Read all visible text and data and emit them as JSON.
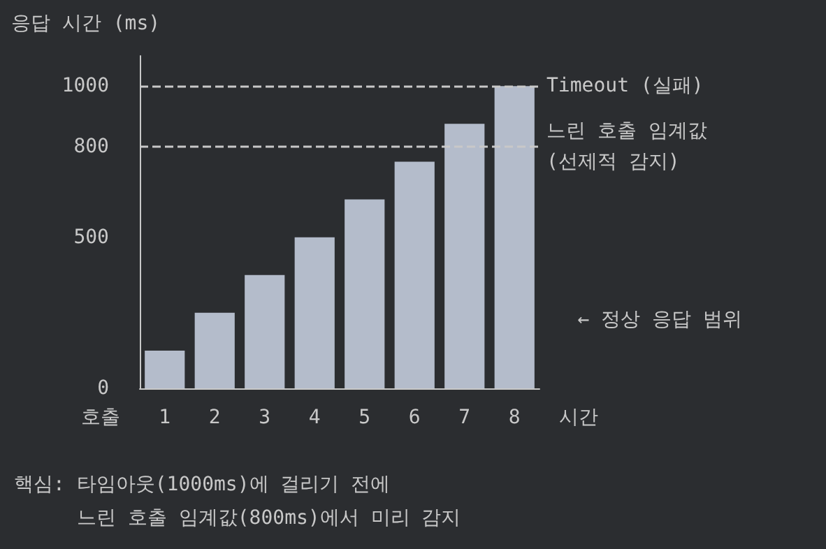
{
  "chart_data": {
    "type": "bar",
    "ylabel": "응답 시간 (ms)",
    "xlabel": "시간",
    "categories": [
      "1",
      "2",
      "3",
      "4",
      "5",
      "6",
      "7",
      "8"
    ],
    "values": [
      125,
      250,
      375,
      500,
      625,
      750,
      875,
      1000
    ],
    "color": "#b4bccb",
    "ylim": [
      0,
      1100
    ],
    "yticks": [
      0,
      500,
      800,
      1000
    ],
    "grid": false,
    "ref_lines": [
      {
        "axis": "y",
        "value": 1000,
        "label": "Timeout (실패)",
        "line_style": "dashed",
        "color": "#c8c8c8"
      },
      {
        "axis": "y",
        "value": 800,
        "label": "느린 호출 임계값\n(선제적 감지)",
        "line_style": "dashed",
        "color": "#c8c8c8"
      }
    ],
    "annotations": [
      "← 정상 응답 범위",
      "호출",
      "핵심: 타임아웃(1000ms)에 걸리기 전에",
      "느린 호출 임계값(800ms)에서 미리 감지"
    ]
  }
}
